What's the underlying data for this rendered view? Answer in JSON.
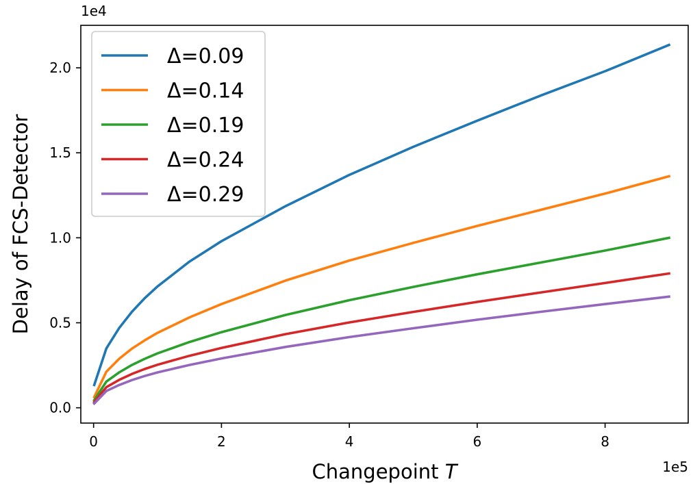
{
  "chart_data": {
    "type": "line",
    "xlabel": "Changepoint",
    "xlabel_var": "T",
    "ylabel": "Delay of FCS-Detector",
    "x_multiplier": "1e5",
    "y_multiplier": "1e4",
    "xlim": [
      -0.2,
      9.3
    ],
    "ylim": [
      -0.09,
      2.25
    ],
    "xticks": [
      0,
      2,
      4,
      6,
      8
    ],
    "yticks": [
      0.0,
      0.5,
      1.0,
      1.5,
      2.0
    ],
    "xtick_labels": [
      "0",
      "2",
      "4",
      "6",
      "8"
    ],
    "ytick_labels": [
      "0.0",
      "0.5",
      "1.0",
      "1.5",
      "2.0"
    ],
    "grid": false,
    "legend_position": "upper-left",
    "series": [
      {
        "name": "Δ=0.09",
        "color": "#1f77b4",
        "x": [
          0.01,
          0.2,
          0.4,
          0.6,
          0.8,
          1.0,
          1.5,
          2.0,
          3.0,
          4.0,
          5.0,
          6.0,
          7.0,
          8.0,
          9.0
        ],
        "values": [
          0.134,
          0.349,
          0.469,
          0.565,
          0.645,
          0.714,
          0.86,
          0.98,
          1.186,
          1.37,
          1.535,
          1.689,
          1.838,
          1.98,
          2.135
        ]
      },
      {
        "name": "Δ=0.14",
        "color": "#ff7f0e",
        "x": [
          0.01,
          0.2,
          0.4,
          0.6,
          0.8,
          1.0,
          1.5,
          2.0,
          3.0,
          4.0,
          5.0,
          6.0,
          7.0,
          8.0,
          9.0
        ],
        "values": [
          0.063,
          0.212,
          0.288,
          0.348,
          0.397,
          0.441,
          0.532,
          0.61,
          0.748,
          0.866,
          0.97,
          1.07,
          1.165,
          1.26,
          1.362
        ]
      },
      {
        "name": "Δ=0.19",
        "color": "#2ca02c",
        "x": [
          0.01,
          0.2,
          0.4,
          0.6,
          0.8,
          1.0,
          1.5,
          2.0,
          3.0,
          4.0,
          5.0,
          6.0,
          7.0,
          8.0,
          9.0
        ],
        "values": [
          0.045,
          0.154,
          0.208,
          0.252,
          0.288,
          0.32,
          0.387,
          0.445,
          0.546,
          0.633,
          0.711,
          0.785,
          0.855,
          0.925,
          1.0
        ]
      },
      {
        "name": "Δ=0.24",
        "color": "#d62728",
        "x": [
          0.01,
          0.2,
          0.4,
          0.6,
          0.8,
          1.0,
          1.5,
          2.0,
          3.0,
          4.0,
          5.0,
          6.0,
          7.0,
          8.0,
          9.0
        ],
        "values": [
          0.034,
          0.121,
          0.164,
          0.199,
          0.228,
          0.253,
          0.306,
          0.352,
          0.433,
          0.502,
          0.564,
          0.623,
          0.679,
          0.734,
          0.79
        ]
      },
      {
        "name": "Δ=0.29",
        "color": "#9467bd",
        "x": [
          0.01,
          0.2,
          0.4,
          0.6,
          0.8,
          1.0,
          1.5,
          2.0,
          3.0,
          4.0,
          5.0,
          6.0,
          7.0,
          8.0,
          9.0
        ],
        "values": [
          0.025,
          0.099,
          0.134,
          0.163,
          0.187,
          0.208,
          0.252,
          0.29,
          0.358,
          0.416,
          0.468,
          0.518,
          0.565,
          0.61,
          0.654
        ]
      }
    ]
  }
}
